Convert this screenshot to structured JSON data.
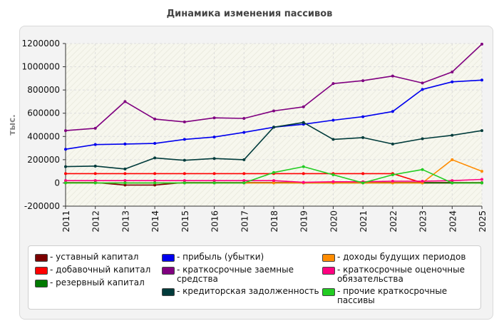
{
  "chart_data": {
    "type": "line",
    "title": "Динамика изменения пассивов",
    "ylabel": "тыс.",
    "xlabel": "",
    "ylim": [
      -200000,
      1200000
    ],
    "y_ticks": [
      "-200000",
      "0",
      "200000",
      "400000",
      "600000",
      "800000",
      "1000000",
      "1200000"
    ],
    "y_tick_values": [
      -200000,
      0,
      200000,
      400000,
      600000,
      800000,
      1000000,
      1200000
    ],
    "categories": [
      "2011",
      "2012",
      "2013",
      "2014",
      "2015",
      "2016",
      "2017",
      "2018",
      "2019",
      "2020",
      "2021",
      "2022",
      "2023",
      "2024",
      "2025"
    ],
    "grid": true,
    "legend_position": "bottom",
    "series": [
      {
        "name": "уставный капитал",
        "color": "#7b0000",
        "values": [
          3000,
          3000,
          -18000,
          -18000,
          3000,
          3000,
          3000,
          3000,
          3000,
          3000,
          3000,
          3000,
          3000,
          3000,
          3000
        ]
      },
      {
        "name": "добавочный капитал",
        "color": "#ff0000",
        "values": [
          80000,
          80000,
          80000,
          80000,
          80000,
          80000,
          80000,
          80000,
          80000,
          80000,
          80000,
          80000,
          0,
          0,
          0
        ]
      },
      {
        "name": "резервный капитал",
        "color": "#007a00",
        "values": [
          0,
          0,
          0,
          0,
          0,
          0,
          0,
          0,
          0,
          0,
          0,
          0,
          0,
          0,
          0
        ]
      },
      {
        "name": "прибыль (убытки)",
        "color": "#0000ee",
        "values": [
          290000,
          330000,
          335000,
          340000,
          375000,
          395000,
          435000,
          480000,
          505000,
          540000,
          570000,
          615000,
          805000,
          870000,
          885000
        ]
      },
      {
        "name": "краткосрочные заемные\nсредства",
        "color": "#800080",
        "values": [
          450000,
          470000,
          700000,
          550000,
          525000,
          560000,
          555000,
          620000,
          655000,
          855000,
          880000,
          920000,
          860000,
          955000,
          1195000
        ]
      },
      {
        "name": "кредиторская задолженность",
        "color": "#003b3b",
        "values": [
          140000,
          145000,
          120000,
          215000,
          195000,
          210000,
          200000,
          480000,
          520000,
          375000,
          390000,
          335000,
          380000,
          410000,
          450000
        ]
      },
      {
        "name": "доходы будущих периодов",
        "color": "#ff8c00",
        "values": [
          0,
          0,
          0,
          0,
          0,
          0,
          0,
          0,
          0,
          0,
          0,
          0,
          0,
          200000,
          100000
        ]
      },
      {
        "name": "краткосрочные оценочные\nобязательства",
        "color": "#ff0080",
        "values": [
          20000,
          20000,
          20000,
          20000,
          20000,
          20000,
          20000,
          20000,
          5000,
          10000,
          10000,
          15000,
          15000,
          20000,
          30000
        ]
      },
      {
        "name": "прочие краткосрочные\nпассивы",
        "color": "#22cc22",
        "values": [
          0,
          0,
          0,
          0,
          0,
          0,
          0,
          90000,
          140000,
          70000,
          0,
          70000,
          115000,
          0,
          0
        ]
      }
    ]
  }
}
